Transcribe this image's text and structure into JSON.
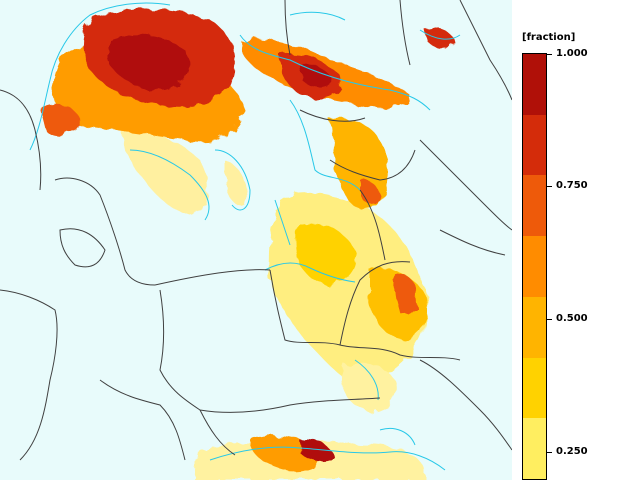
{
  "legend": {
    "unit": "[fraction]",
    "tick_labels": [
      "1.000",
      "0.750",
      "0.500",
      "0.250"
    ],
    "tick_values": [
      1.0,
      0.75,
      0.5,
      0.25
    ],
    "colors_top_to_bottom": [
      "#b01008",
      "#d42c0a",
      "#ee5a0a",
      "#ff8c00",
      "#ffb400",
      "#ffd200",
      "#ffee60"
    ]
  },
  "map": {
    "background_color": "#e8fbfb",
    "border_color": "#404040",
    "coast_color": "#28c8e8"
  }
}
